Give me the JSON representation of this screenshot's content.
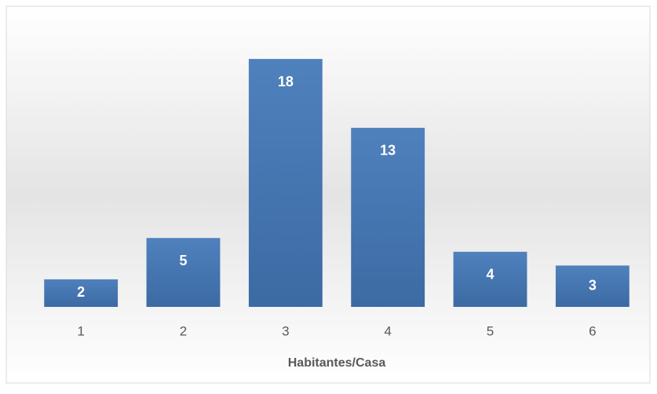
{
  "chart_data": {
    "type": "bar",
    "x_label": "Habitantes/Casa",
    "categories": [
      "1",
      "2",
      "3",
      "4",
      "5",
      "6"
    ],
    "values": [
      2,
      5,
      18,
      13,
      4,
      3
    ],
    "color": "#4a7ebb",
    "ylim": [
      0,
      20
    ]
  }
}
